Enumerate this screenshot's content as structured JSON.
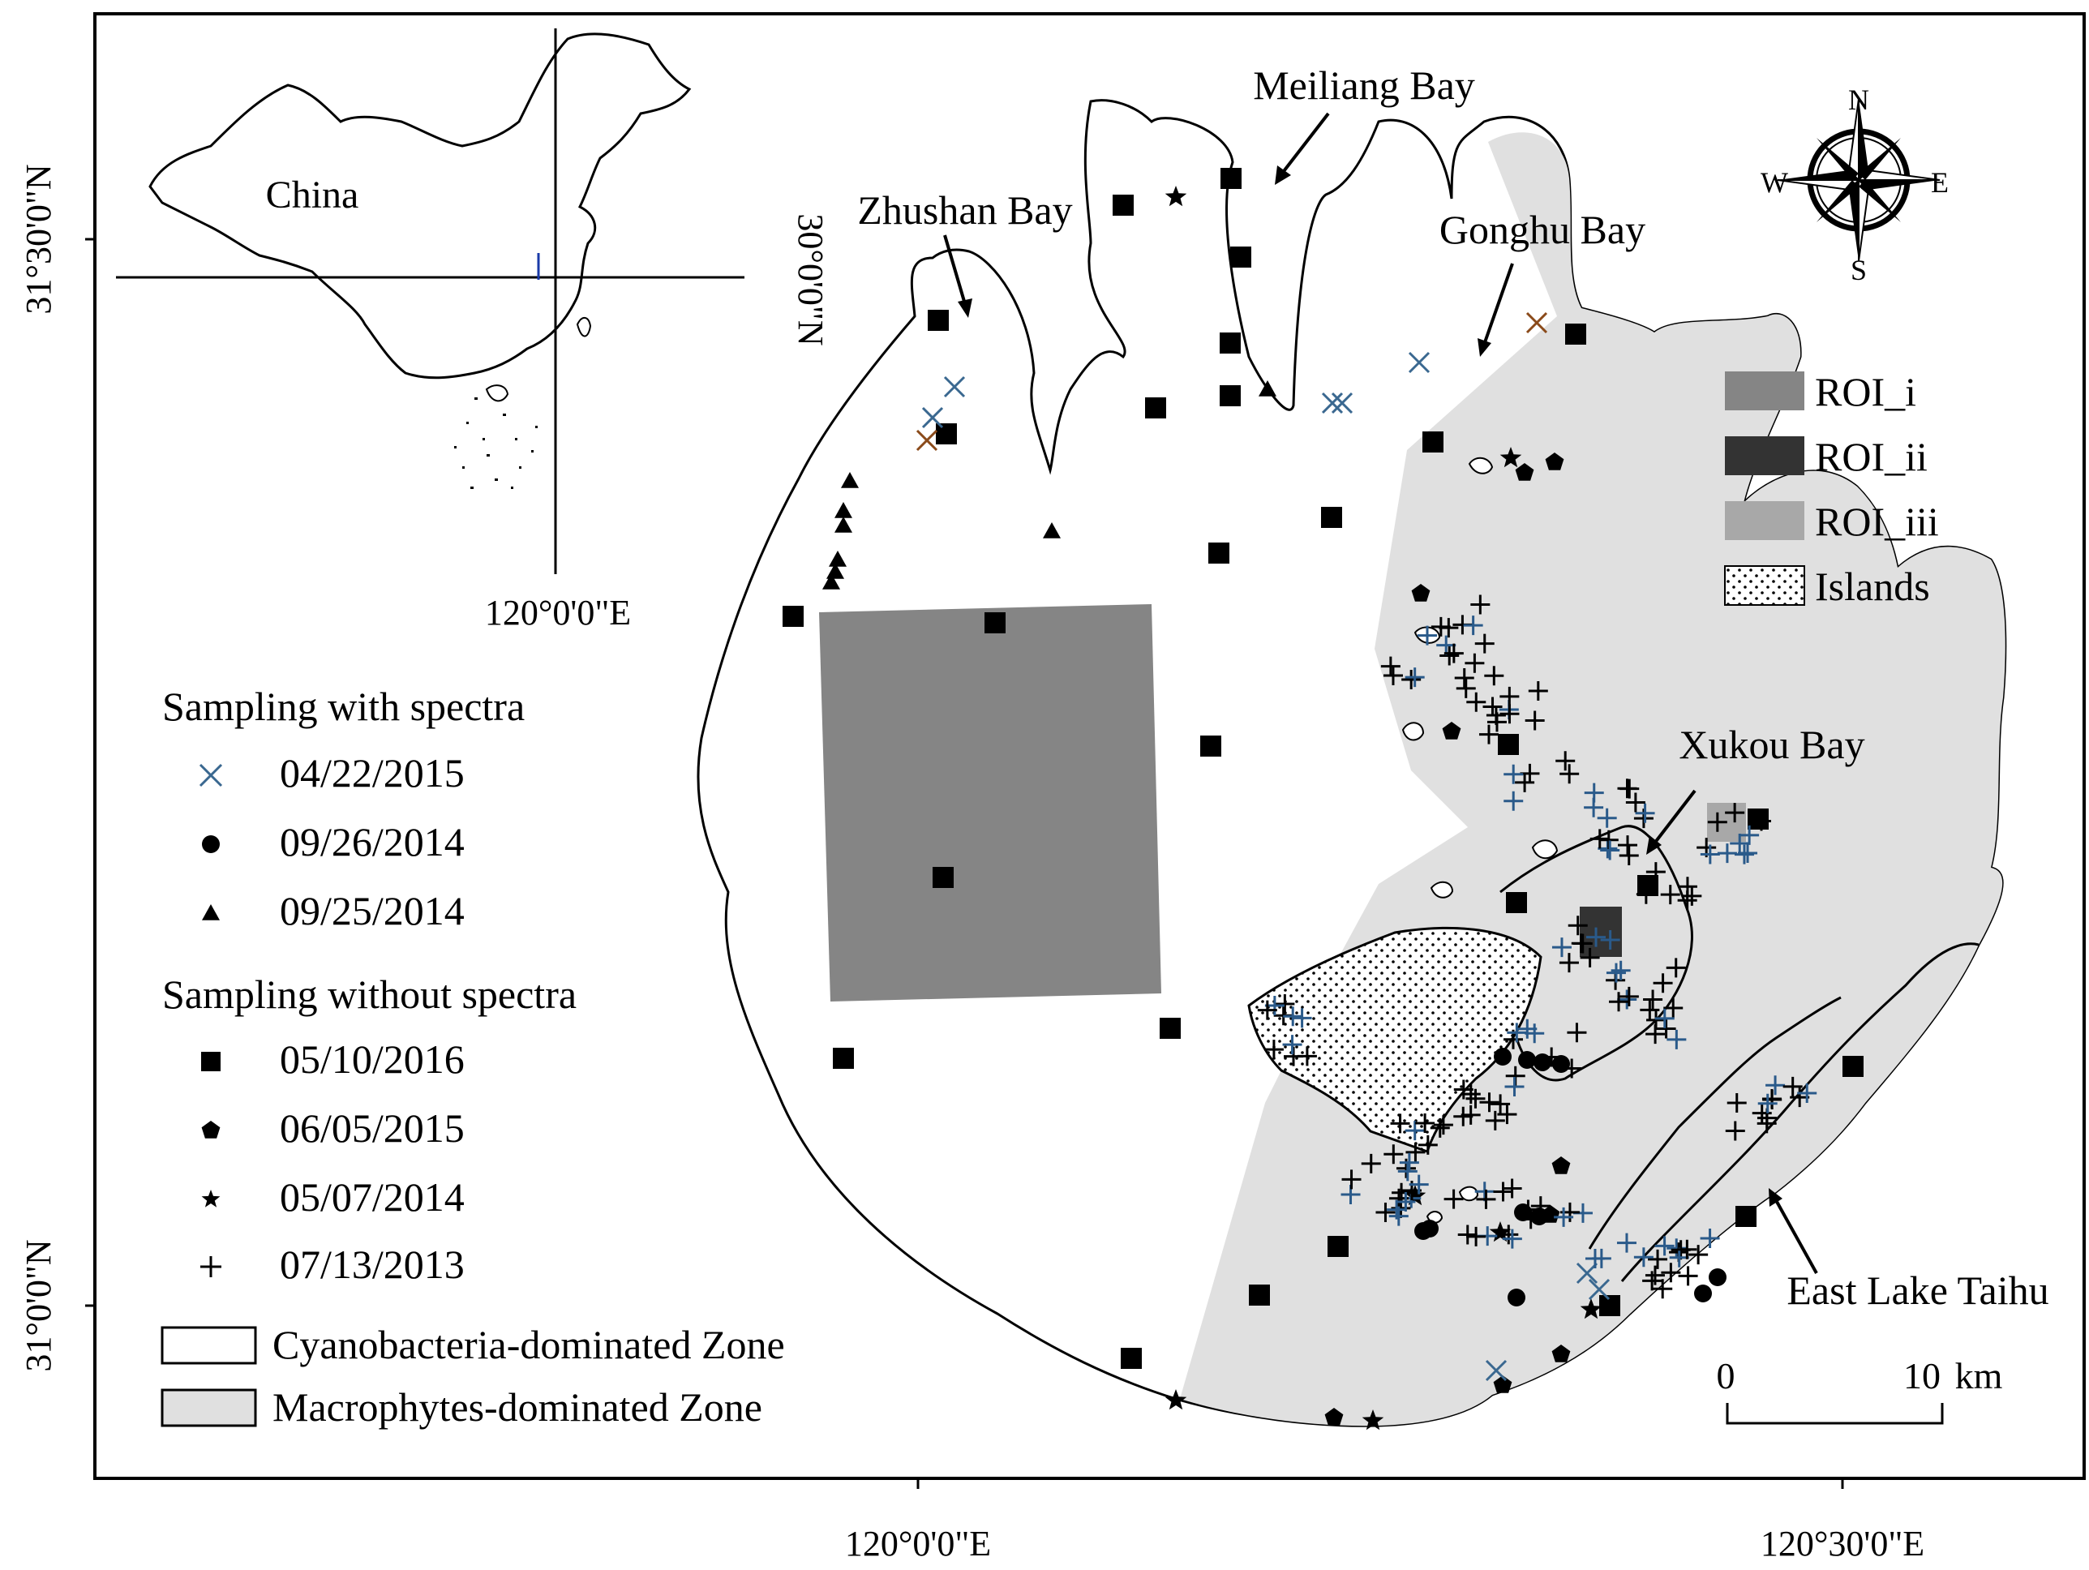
{
  "coords": {
    "lat_top": "31°30'0\"N",
    "lat_bottom": "31°0'0\"N",
    "lon_left": "120°0'0\"E",
    "lon_right": "120°30'0\"E"
  },
  "inset": {
    "country": "China",
    "lon_label": "120°0'0\"E",
    "lat_label": "30°0'0\"N"
  },
  "places": {
    "meiliang": "Meiliang Bay",
    "zhushan": "Zhushan Bay",
    "gonghu": "Gonghu Bay",
    "xukou": "Xukou Bay",
    "east_lake": "East Lake Taihu"
  },
  "compass": {
    "n": "N",
    "s": "S",
    "e": "E",
    "w": "W"
  },
  "roi_legend": [
    {
      "label": "ROI_i",
      "color": "#858585",
      "pattern": "solid"
    },
    {
      "label": "ROI_ii",
      "color": "#333333",
      "pattern": "solid"
    },
    {
      "label": "ROI_iii",
      "color": "#a8a8a8",
      "pattern": "solid"
    },
    {
      "label": "Islands",
      "color": "#ffffff",
      "pattern": "dots"
    }
  ],
  "legend": {
    "with_spectra_title": "Sampling with spectra",
    "with_spectra": [
      {
        "symbol": "cross",
        "date": "04/22/2015"
      },
      {
        "symbol": "circle",
        "date": "09/26/2014"
      },
      {
        "symbol": "triangle",
        "date": "09/25/2014"
      }
    ],
    "without_spectra_title": "Sampling without spectra",
    "without_spectra": [
      {
        "symbol": "square",
        "date": "05/10/2016"
      },
      {
        "symbol": "pentagon",
        "date": "06/05/2015"
      },
      {
        "symbol": "star",
        "date": "05/07/2014"
      },
      {
        "symbol": "plus",
        "date": "07/13/2013"
      }
    ],
    "zones": [
      {
        "label": "Cyanobacteria-dominated Zone",
        "color": "#ffffff"
      },
      {
        "label": "Macrophytes-dominated Zone",
        "color": "#e0e0e0"
      }
    ]
  },
  "scale": {
    "zero": "0",
    "end": "10",
    "unit": "km"
  },
  "colors": {
    "zone_cyano": "#ffffff",
    "zone_macro": "#e0e0e0",
    "roi_i": "#858585",
    "roi_ii": "#333333",
    "roi_iii": "#a8a8a8",
    "cross_2015": "#3a6890",
    "plus_2013_alt": "#2a5a8a"
  }
}
